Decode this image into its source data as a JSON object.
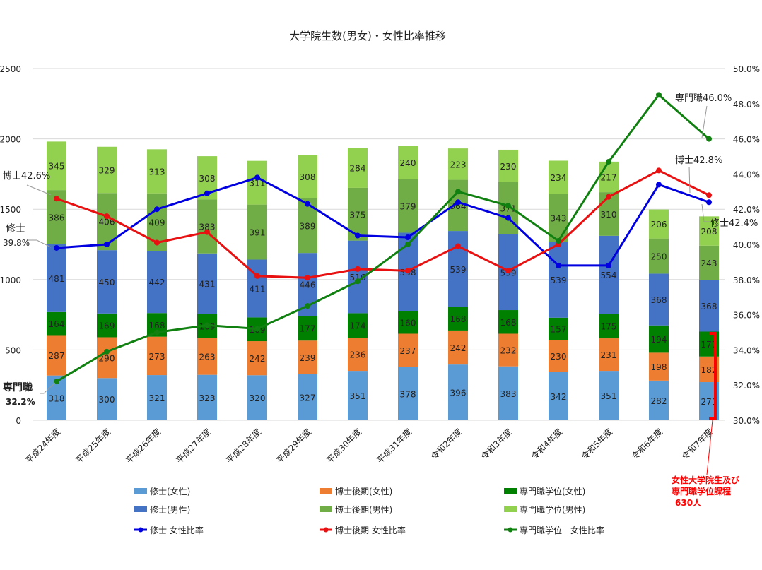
{
  "chart_data": {
    "type": "bar",
    "stacked": true,
    "title": "大学院生数(男女)・女性比率推移",
    "categories": [
      "平成24年度",
      "平成25年度",
      "平成26年度",
      "平成27年度",
      "平成28年度",
      "平成29年度",
      "平成30年度",
      "平成31年度",
      "令和2年度",
      "令和3年度",
      "令和4年度",
      "令和5年度",
      "令和6年度",
      "令和7年度"
    ],
    "y_left": {
      "min": 0,
      "max": 2500,
      "ticks": [
        "0",
        "500",
        "1000",
        "1500",
        "2000",
        "2500"
      ],
      "tick_values": [
        0,
        500,
        1000,
        1500,
        2000,
        2500
      ]
    },
    "y_right": {
      "min": 30,
      "max": 50,
      "ticks": [
        "30.0%",
        "32.0%",
        "34.0%",
        "36.0%",
        "38.0%",
        "40.0%",
        "42.0%",
        "44.0%",
        "46.0%",
        "48.0%",
        "50.0%"
      ],
      "tick_values": [
        30,
        32,
        34,
        36,
        38,
        40,
        42,
        44,
        46,
        48,
        50
      ]
    },
    "grid": true,
    "legend_position": "bottom",
    "series": [
      {
        "name": "修士(女性)",
        "kind": "bar",
        "color": "#5B9BD5",
        "values": [
          318,
          300,
          321,
          323,
          320,
          327,
          351,
          378,
          396,
          383,
          342,
          351,
          282,
          271
        ]
      },
      {
        "name": "博士後期(女性)",
        "kind": "bar",
        "color": "#ED7D31",
        "values": [
          287,
          290,
          273,
          263,
          242,
          239,
          236,
          237,
          242,
          232,
          230,
          231,
          198,
          182
        ]
      },
      {
        "name": "専門職学位(女性)",
        "kind": "bar",
        "color": "#008000",
        "values": [
          164,
          169,
          168,
          169,
          169,
          177,
          174,
          160,
          168,
          168,
          157,
          175,
          194,
          177
        ]
      },
      {
        "name": "修士(男性)",
        "kind": "bar",
        "color": "#4472C4",
        "values": [
          481,
          450,
          442,
          431,
          411,
          446,
          516,
          558,
          539,
          539,
          539,
          554,
          368,
          368
        ]
      },
      {
        "name": "博士後期(男性)",
        "kind": "bar",
        "color": "#70AD47",
        "values": [
          386,
          406,
          409,
          383,
          391,
          389,
          375,
          379,
          364,
          371,
          343,
          310,
          250,
          243
        ]
      },
      {
        "name": "専門職学位(男性)",
        "kind": "bar",
        "color": "#92D050",
        "values": [
          345,
          329,
          313,
          308,
          311,
          308,
          284,
          240,
          223,
          230,
          234,
          217,
          206,
          208
        ]
      },
      {
        "name": "修士 女性比率",
        "kind": "line",
        "axis": "right",
        "color": "#0000E0",
        "values": [
          39.8,
          40.0,
          42.0,
          42.9,
          43.8,
          42.3,
          40.5,
          40.4,
          42.4,
          41.5,
          38.8,
          38.8,
          43.4,
          42.4
        ]
      },
      {
        "name": "博士後期 女性比率",
        "kind": "line",
        "axis": "right",
        "color": "#E81010",
        "values": [
          42.6,
          41.6,
          40.1,
          40.7,
          38.2,
          38.1,
          38.6,
          38.5,
          39.9,
          38.5,
          40.0,
          42.7,
          44.2,
          42.8
        ]
      },
      {
        "name": "専門職学位　女性比率",
        "kind": "line",
        "axis": "right",
        "color": "#108010",
        "values": [
          32.2,
          33.9,
          35.0,
          35.4,
          35.2,
          36.5,
          37.9,
          40.0,
          43.0,
          42.2,
          40.2,
          44.7,
          48.5,
          46.0
        ]
      }
    ],
    "annotations": {
      "hakushi_start": "博士42.6%",
      "shushi_start_1": "修士",
      "shushi_start_2": "39.8%",
      "senmon_start_1": "専門職",
      "senmon_start_2": "32.2%",
      "senmon_end": "専門職46.0%",
      "hakushi_end": "博士42.8%",
      "shushi_end": "修士42.4%",
      "note_line1": "女性大学院生及び",
      "note_line2": "専門職学位課程",
      "note_line3": "630人",
      "note_color": "#FF0000"
    }
  }
}
